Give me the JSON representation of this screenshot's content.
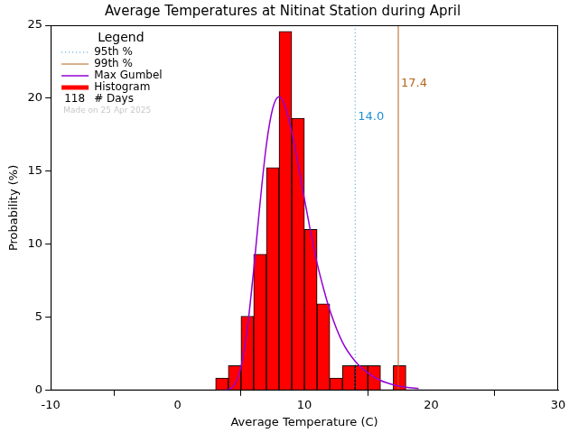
{
  "chart_data": {
    "type": "histogram",
    "title": "Average Temperatures at Nitinat Station during April",
    "x_label": "Average Temperature (C)",
    "y_label": "Probability (%)",
    "name": "Histogram",
    "color": "#ff0000",
    "bins": [
      3,
      4,
      5,
      6,
      7,
      8,
      9,
      10,
      11,
      12,
      13,
      14,
      15,
      16,
      17,
      18
    ],
    "values": [
      0.85,
      1.69,
      5.08,
      9.32,
      15.25,
      24.58,
      18.64,
      11.02,
      5.93,
      0.85,
      1.69,
      1.69,
      1.69,
      0,
      1.69
    ],
    "series": [
      {
        "name": "Max Gumbel",
        "type": "line",
        "color": "#9400d3",
        "x": [
          3,
          4,
          4.5,
          5,
          5.5,
          6,
          6.5,
          7,
          7.5,
          8,
          8.5,
          9,
          9.5,
          10,
          10.5,
          11,
          11.5,
          12,
          13,
          14,
          15,
          16,
          17,
          18,
          19
        ],
        "values": [
          0,
          0.07,
          0.43,
          1.6,
          4.25,
          8.25,
          12.8,
          16.8,
          19.3,
          20.1,
          19.4,
          17.7,
          15.5,
          13.1,
          10.8,
          8.7,
          7.0,
          5.5,
          3.3,
          2.0,
          1.2,
          0.68,
          0.39,
          0.22,
          0.13
        ]
      }
    ],
    "reference_lines": [
      {
        "name": "95th %",
        "value": 14.0,
        "label": "14.0",
        "color": "#1e8fd6",
        "line_style": "dotted"
      },
      {
        "name": "99th %",
        "value": 17.4,
        "label": "17.4",
        "color": "#b5651d",
        "line_style": "solid"
      }
    ],
    "legend": "upper left",
    "legend_title": "Legend",
    "days": 118,
    "days_label": "# Days",
    "footnote": "Made on 25 Apr 2025",
    "xlim": [
      -10,
      30
    ],
    "xticks": [
      -10,
      0,
      10,
      20,
      30
    ],
    "ylim": [
      0,
      25
    ],
    "yticks": [
      0,
      5,
      10,
      15,
      20,
      25
    ],
    "grid": false
  }
}
